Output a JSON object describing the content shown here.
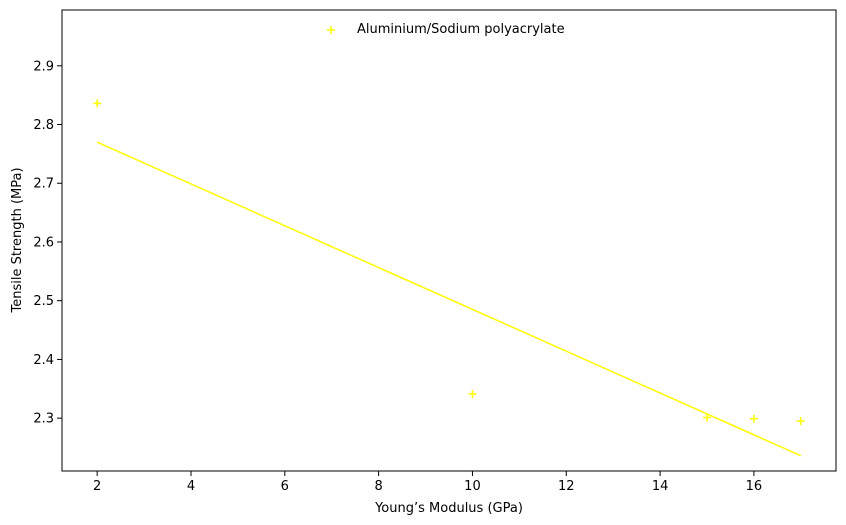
{
  "chart_data": {
    "type": "scatter",
    "title": "",
    "xlabel": "Young’s Modulus (GPa)",
    "ylabel": "Tensile Strength (MPa)",
    "xlim": [
      1.25,
      17.75
    ],
    "ylim": [
      2.21,
      2.995
    ],
    "xticks": [
      2,
      4,
      6,
      8,
      10,
      12,
      14,
      16
    ],
    "yticks": [
      2.3,
      2.4,
      2.5,
      2.6,
      2.7,
      2.8,
      2.9
    ],
    "xtick_labels": [
      "2",
      "4",
      "6",
      "8",
      "10",
      "12",
      "14",
      "16"
    ],
    "ytick_labels": [
      "2.3",
      "2.4",
      "2.5",
      "2.6",
      "2.7",
      "2.8",
      "2.9"
    ],
    "grid": false,
    "legend_position": "top-center",
    "series": [
      {
        "name": "Aluminium/Sodium polyacrylate",
        "marker": "plus",
        "color": "#ffff00",
        "points": [
          {
            "x": 2,
            "y": 2.836
          },
          {
            "x": 10,
            "y": 2.341
          },
          {
            "x": 15,
            "y": 2.301
          },
          {
            "x": 16,
            "y": 2.299
          },
          {
            "x": 17,
            "y": 2.295
          }
        ]
      }
    ],
    "trendline": {
      "color": "#ffff00",
      "points": [
        {
          "x": 2,
          "y": 2.77
        },
        {
          "x": 17,
          "y": 2.236
        }
      ]
    }
  }
}
